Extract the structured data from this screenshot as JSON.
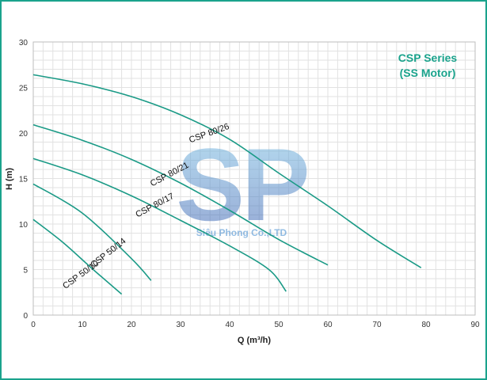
{
  "chart_data": {
    "type": "line",
    "title_lines": [
      "CSP Series",
      "(SS Motor)"
    ],
    "xlabel": "Q (m³/h)",
    "ylabel": "H (m)",
    "xlim": [
      0,
      90
    ],
    "ylim": [
      0,
      30
    ],
    "xticks": [
      0,
      10,
      20,
      30,
      40,
      50,
      60,
      70,
      80,
      90
    ],
    "yticks": [
      0,
      5,
      10,
      15,
      20,
      25,
      30
    ],
    "grid": true,
    "colors": {
      "curve": "#1a9a86",
      "title": "#1aa38c",
      "grid": "#e2e2e2",
      "frame": "#1aa38c"
    },
    "series": [
      {
        "name": "CSP 80/26",
        "label_pos": {
          "x": 36,
          "y": 19.7,
          "angle": -20
        },
        "points": [
          [
            0,
            26.4
          ],
          [
            10,
            25.4
          ],
          [
            20,
            24.0
          ],
          [
            30,
            22.0
          ],
          [
            40,
            19.3
          ],
          [
            50,
            15.6
          ],
          [
            60,
            12.0
          ],
          [
            70,
            8.2
          ],
          [
            79,
            5.2
          ]
        ]
      },
      {
        "name": "CSP 80/21",
        "label_pos": {
          "x": 28,
          "y": 15.2,
          "angle": -28
        },
        "points": [
          [
            0,
            20.9
          ],
          [
            10,
            19.2
          ],
          [
            20,
            17.1
          ],
          [
            30,
            14.5
          ],
          [
            40,
            11.5
          ],
          [
            50,
            8.3
          ],
          [
            60,
            5.5
          ]
        ]
      },
      {
        "name": "CSP 80/17",
        "label_pos": {
          "x": 25,
          "y": 11.8,
          "angle": -28
        },
        "points": [
          [
            0,
            17.2
          ],
          [
            10,
            15.4
          ],
          [
            20,
            13.1
          ],
          [
            30,
            10.4
          ],
          [
            40,
            7.6
          ],
          [
            48,
            5.0
          ],
          [
            51.5,
            2.6
          ]
        ]
      },
      {
        "name": "CSP 50/14",
        "label_pos": {
          "x": 15.6,
          "y": 6.6,
          "angle": -38
        },
        "points": [
          [
            0,
            14.4
          ],
          [
            10,
            11.2
          ],
          [
            20,
            6.2
          ],
          [
            24,
            3.8
          ]
        ]
      },
      {
        "name": "CSP 50/10",
        "label_pos": {
          "x": 10,
          "y": 4.2,
          "angle": -36
        },
        "points": [
          [
            0,
            10.5
          ],
          [
            6,
            8.0
          ],
          [
            12,
            5.1
          ],
          [
            18,
            2.3
          ]
        ]
      }
    ],
    "watermark": {
      "logo": "SP",
      "company": "Siêu Phong Co.,LTD"
    }
  }
}
